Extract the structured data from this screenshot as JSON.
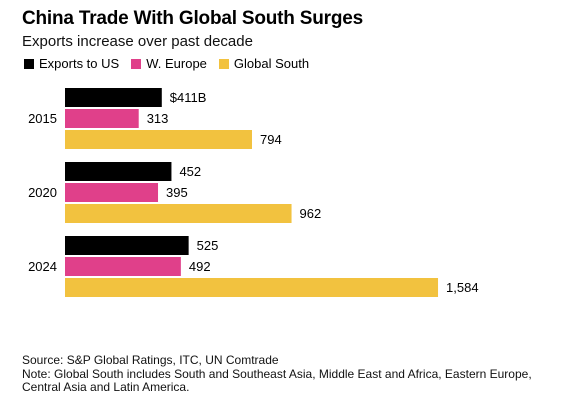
{
  "chart_data": {
    "type": "bar",
    "orientation": "horizontal",
    "title": "China Trade With Global South Surges",
    "subtitle": "Exports increase over past decade",
    "categories": [
      "2015",
      "2020",
      "2024"
    ],
    "series": [
      {
        "name": "Exports to US",
        "color": "#000000",
        "values": [
          411,
          452,
          525
        ],
        "labels": [
          "$411B",
          "452",
          "525"
        ]
      },
      {
        "name": "W. Europe",
        "color": "#e0408a",
        "values": [
          313,
          395,
          492
        ],
        "labels": [
          "313",
          "395",
          "492"
        ]
      },
      {
        "name": "Global South",
        "color": "#f2c23f",
        "values": [
          794,
          962,
          1584
        ],
        "labels": [
          "794",
          "962",
          "1,584"
        ]
      }
    ],
    "xlim": [
      0,
      1600
    ],
    "grid": false,
    "legend": "top-left"
  },
  "footer": {
    "source": "Source: S&P Global Ratings, ITC, UN Comtrade",
    "note": "Note: Global South includes South and Southeast Asia, Middle East and Africa, Eastern Europe, Central Asia and Latin America."
  }
}
